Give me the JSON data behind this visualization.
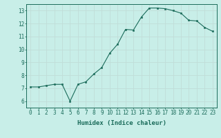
{
  "x": [
    0,
    1,
    2,
    3,
    4,
    5,
    6,
    7,
    8,
    9,
    10,
    11,
    12,
    13,
    14,
    15,
    16,
    17,
    18,
    19,
    20,
    21,
    22,
    23
  ],
  "y": [
    7.1,
    7.1,
    7.2,
    7.3,
    7.3,
    6.0,
    7.3,
    7.5,
    8.1,
    8.6,
    9.7,
    10.4,
    11.55,
    11.5,
    12.5,
    13.2,
    13.2,
    13.15,
    13.0,
    12.8,
    12.25,
    12.2,
    11.7,
    11.4
  ],
  "xlabel": "Humidex (Indice chaleur)",
  "xlim": [
    -0.5,
    23.5
  ],
  "ylim": [
    5.5,
    13.5
  ],
  "yticks": [
    6,
    7,
    8,
    9,
    10,
    11,
    12,
    13
  ],
  "xticks": [
    0,
    1,
    2,
    3,
    4,
    5,
    6,
    7,
    8,
    9,
    10,
    11,
    12,
    13,
    14,
    15,
    16,
    17,
    18,
    19,
    20,
    21,
    22,
    23
  ],
  "line_color": "#1a6b5a",
  "marker_color": "#1a6b5a",
  "bg_color": "#c8eee8",
  "grid_color": "#c0ddd8",
  "axis_color": "#1a6b5a",
  "label_fontsize": 6.5,
  "tick_fontsize": 5.5
}
